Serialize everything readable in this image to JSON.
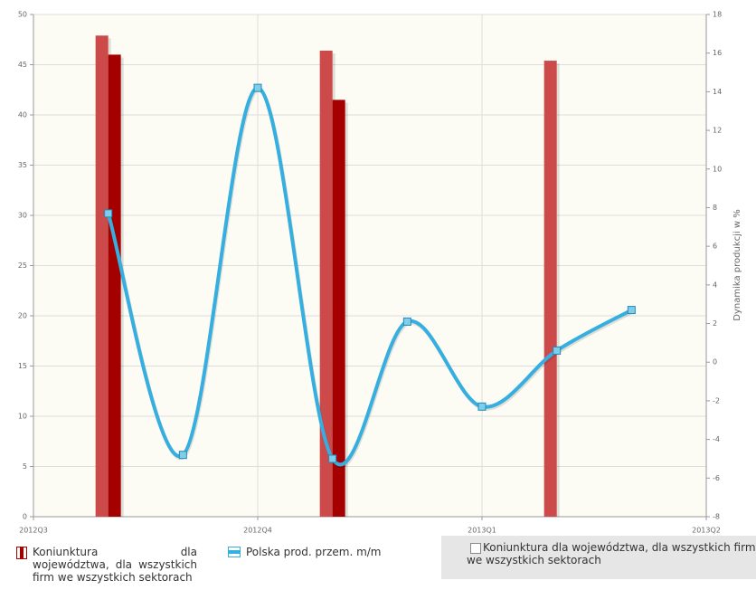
{
  "chart_data": {
    "type": "bar-line",
    "y2_label": "Dynamika produkcji w %",
    "x": [
      1,
      2,
      3,
      4,
      5,
      6,
      7,
      8
    ],
    "xlim": [
      0,
      9
    ],
    "xticks": [
      {
        "value": 0,
        "label": "2012Q3"
      },
      {
        "value": 3,
        "label": "2012Q4"
      },
      {
        "value": 6,
        "label": "2013Q1"
      },
      {
        "value": 9,
        "label": "2013Q2"
      }
    ],
    "ylim": [
      0,
      50
    ],
    "yticks": [
      0,
      5,
      10,
      15,
      20,
      25,
      30,
      35,
      40,
      45,
      50
    ],
    "y2lim": [
      -8,
      18
    ],
    "y2ticks": [
      -8,
      -6,
      -4,
      -2,
      0,
      2,
      4,
      6,
      8,
      10,
      12,
      14,
      16,
      18
    ],
    "grid": true,
    "series": [
      {
        "name": "Koniunktura dla województwa, dla wszystkich firm we wszystkich sektorach",
        "color": "#cd4a4a",
        "values": [
          47.9,
          null,
          null,
          46.4,
          null,
          null,
          45.4,
          null
        ],
        "enabled": false
      },
      {
        "name": "Koniunktura dla województwa, dla wszystkich firm we wszystkich sektorach",
        "color": "#a50000",
        "values": [
          46.0,
          null,
          null,
          41.5,
          null,
          null,
          null,
          null
        ]
      },
      {
        "name": "Polska prod. przem. m/m",
        "color": "#36aee0",
        "values": [
          7.7,
          -4.8,
          14.2,
          -5.0,
          2.1,
          -2.3,
          0.6,
          2.7
        ],
        "axis": "y2"
      }
    ]
  }
}
